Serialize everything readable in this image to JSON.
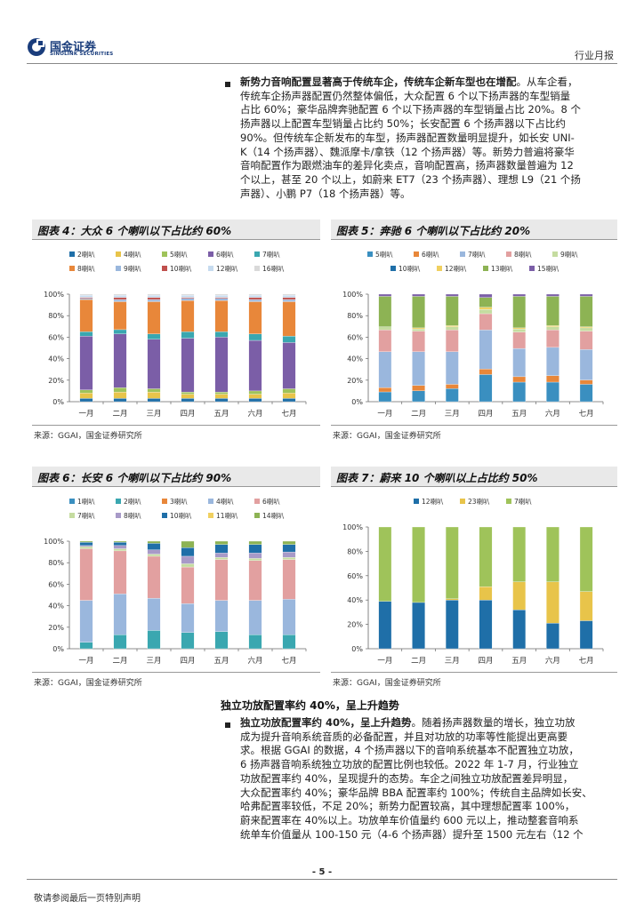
{
  "header": {
    "logo_cn": "国金证券",
    "logo_en": "SINOLINK SECURITIES",
    "section": "行业月报"
  },
  "para1": {
    "lead": "新势力音响配置显著高于传统车企，传统车企新车型也在增配",
    "lines": [
      "。从车企看，",
      "传统车企扬声器配置仍然整体偏低，大众配置 6 个以下扬声器的车型销量",
      "占比 60%；豪华品牌奔驰配置 6 个以下扬声器的车型销量占比 20%。8 个",
      "扬声器以上配置车型销量占比约 50%；长安配置 6 个扬声器以下占比约",
      "90%。但传统车企新发布的车型，扬声器配置数量明显提升，如长安 UNI-",
      "K（14 个扬声器）、魏派摩卡/拿铁（12 个扬声器）等。新势力普遍将豪华",
      "音响配置作为跟燃油车的差异化卖点，音响配置高，扬声器数量普遍为 12",
      "个以上，甚至 20 个以上，如蔚来 ET7（23 个扬声器）、理想 L9（21 个扬",
      "声器）、小鹏 P7（18 个扬声器）等。"
    ]
  },
  "months": [
    "一月",
    "二月",
    "三月",
    "四月",
    "五月",
    "六月",
    "七月"
  ],
  "source_text": "来源：GGAI，国金证券研究所",
  "charts": [
    {
      "title": "图表 4：大众 6 个喇叭以下占比约 60%",
      "legend": [
        "2喇叭",
        "4喇叭",
        "5喇叭",
        "6喇叭",
        "7喇叭",
        "8喇叭",
        "9喇叭",
        "10喇叭",
        "12喇叭",
        "16喇叭"
      ],
      "legend_rows": [
        5,
        5
      ]
    },
    {
      "title": "图表 5：奔驰 6 个喇叭以下占比约 20%",
      "legend": [
        "5喇叭",
        "6喇叭",
        "7喇叭",
        "8喇叭",
        "9喇叭",
        "10喇叭",
        "12喇叭",
        "13喇叭",
        "15喇叭"
      ],
      "legend_rows": [
        5,
        4
      ]
    },
    {
      "title": "图表 6：长安 6 个喇叭以下占比约 90%",
      "legend": [
        "1喇叭",
        "2喇叭",
        "3喇叭",
        "4喇叭",
        "6喇叭",
        "7喇叭",
        "8喇叭",
        "10喇叭",
        "11喇叭",
        "14喇叭"
      ],
      "legend_rows": [
        5,
        5
      ]
    },
    {
      "title": "图表 7：蔚来 10 个喇叭以上占比约 50%",
      "legend": [
        "12喇叭",
        "23喇叭",
        "7喇叭"
      ],
      "legend_rows": [
        3
      ]
    }
  ],
  "chart_data": [
    {
      "type": "bar",
      "stacked": true,
      "title": "图表 4：大众 6 个喇叭以下占比约 60%",
      "categories": [
        "一月",
        "二月",
        "三月",
        "四月",
        "五月",
        "六月",
        "七月"
      ],
      "ylim": [
        0,
        100
      ],
      "yticks": [
        "0%",
        "20%",
        "40%",
        "60%",
        "80%",
        "100%"
      ],
      "series": [
        {
          "name": "2喇叭",
          "color": "#1f6fa8",
          "values": [
            3,
            3,
            3,
            3,
            3,
            3,
            3
          ]
        },
        {
          "name": "4喇叭",
          "color": "#e8c44a",
          "values": [
            5,
            6,
            6,
            4,
            4,
            4,
            5
          ]
        },
        {
          "name": "5喇叭",
          "color": "#9fc35a",
          "values": [
            3,
            4,
            3,
            2,
            2,
            3,
            4
          ]
        },
        {
          "name": "6喇叭",
          "color": "#7b5ea7",
          "values": [
            50,
            50,
            46,
            50,
            51,
            47,
            43
          ]
        },
        {
          "name": "7喇叭",
          "color": "#3aa7b0",
          "values": [
            4,
            4,
            5,
            6,
            5,
            6,
            6
          ]
        },
        {
          "name": "8喇叭",
          "color": "#e8873a",
          "values": [
            30,
            26,
            30,
            29,
            29,
            30,
            32
          ]
        },
        {
          "name": "9喇叭",
          "color": "#9ab7dd",
          "values": [
            1,
            2,
            2,
            2,
            2,
            2,
            2
          ]
        },
        {
          "name": "10喇叭",
          "color": "#c0504d",
          "values": [
            1,
            2,
            2,
            1,
            1,
            2,
            2
          ]
        },
        {
          "name": "12喇叭",
          "color": "#c6dbef",
          "values": [
            2,
            2,
            2,
            2,
            2,
            2,
            2
          ]
        },
        {
          "name": "16喇叭",
          "color": "#d9d9d9",
          "values": [
            1,
            1,
            1,
            1,
            1,
            1,
            1
          ]
        }
      ]
    },
    {
      "type": "bar",
      "stacked": true,
      "title": "图表 5：奔驰 6 个喇叭以下占比约 20%",
      "categories": [
        "一月",
        "二月",
        "三月",
        "四月",
        "五月",
        "六月",
        "七月"
      ],
      "ylim": [
        0,
        100
      ],
      "yticks": [
        "0%",
        "20%",
        "40%",
        "60%",
        "80%",
        "100%"
      ],
      "series": [
        {
          "name": "5喇叭",
          "color": "#3a8fc0",
          "values": [
            9,
            10,
            12,
            25,
            18,
            18,
            16
          ]
        },
        {
          "name": "6喇叭",
          "color": "#e8873a",
          "values": [
            4,
            5,
            4,
            5,
            5,
            6,
            4
          ]
        },
        {
          "name": "7喇叭",
          "color": "#9ab7dd",
          "values": [
            33,
            31,
            30,
            36,
            26,
            26,
            28
          ]
        },
        {
          "name": "8喇叭",
          "color": "#e2a0a0",
          "values": [
            20,
            19,
            20,
            15,
            15,
            16,
            17
          ]
        },
        {
          "name": "9喇叭",
          "color": "#c5dca0",
          "values": [
            3,
            2,
            3,
            4,
            3,
            3,
            3
          ]
        },
        {
          "name": "10喇叭",
          "color": "#1f6fa8",
          "values": [
            0,
            0,
            0,
            0,
            0,
            0,
            0
          ]
        },
        {
          "name": "12喇叭",
          "color": "#f0d060",
          "values": [
            0,
            1,
            1,
            2,
            1,
            1,
            1
          ]
        },
        {
          "name": "13喇叭",
          "color": "#8db354",
          "values": [
            28,
            29,
            27,
            9,
            29,
            27,
            28
          ]
        },
        {
          "name": "15喇叭",
          "color": "#7b5ea7",
          "values": [
            2,
            2,
            2,
            3,
            2,
            2,
            2
          ]
        }
      ]
    },
    {
      "type": "bar",
      "stacked": true,
      "title": "图表 6：长安 6 个喇叭以下占比约 90%",
      "categories": [
        "一月",
        "二月",
        "三月",
        "四月",
        "五月",
        "六月",
        "七月"
      ],
      "ylim": [
        0,
        100
      ],
      "yticks": [
        "0%",
        "20%",
        "40%",
        "60%",
        "80%",
        "100%"
      ],
      "series": [
        {
          "name": "1喇叭",
          "color": "#3a8fc0",
          "values": [
            0,
            0,
            0,
            0,
            0,
            0,
            0
          ]
        },
        {
          "name": "2喇叭",
          "color": "#3aa7b0",
          "values": [
            6,
            13,
            17,
            15,
            16,
            13,
            13
          ]
        },
        {
          "name": "3喇叭",
          "color": "#e8873a",
          "values": [
            0,
            0,
            0,
            0,
            0,
            0,
            0
          ]
        },
        {
          "name": "4喇叭",
          "color": "#9ab7dd",
          "values": [
            39,
            38,
            30,
            27,
            29,
            32,
            33
          ]
        },
        {
          "name": "6喇叭",
          "color": "#e2a0a0",
          "values": [
            48,
            40,
            39,
            34,
            38,
            37,
            37
          ]
        },
        {
          "name": "7喇叭",
          "color": "#c5dca0",
          "values": [
            2,
            2,
            2,
            3,
            2,
            2,
            2
          ]
        },
        {
          "name": "8喇叭",
          "color": "#a89ac8",
          "values": [
            1,
            3,
            4,
            7,
            4,
            5,
            5
          ]
        },
        {
          "name": "10喇叭",
          "color": "#1f6fa8",
          "values": [
            3,
            3,
            6,
            8,
            8,
            8,
            7
          ]
        },
        {
          "name": "11喇叭",
          "color": "#f0d060",
          "values": [
            0,
            0,
            0,
            0,
            0,
            0,
            0
          ]
        },
        {
          "name": "14喇叭",
          "color": "#8db354",
          "values": [
            1,
            1,
            2,
            6,
            3,
            3,
            3
          ]
        }
      ]
    },
    {
      "type": "bar",
      "stacked": true,
      "title": "图表 7：蔚来 10 个喇叭以上占比约 50%",
      "categories": [
        "一月",
        "二月",
        "三月",
        "四月",
        "五月",
        "六月",
        "七月"
      ],
      "ylim": [
        0,
        100
      ],
      "yticks": [
        "0%",
        "20%",
        "40%",
        "60%",
        "80%",
        "100%"
      ],
      "series": [
        {
          "name": "12喇叭",
          "color": "#1f6fa8",
          "values": [
            39,
            38,
            40,
            40,
            32,
            21,
            23
          ]
        },
        {
          "name": "23喇叭",
          "color": "#e8c44a",
          "values": [
            0,
            0,
            1,
            11,
            23,
            34,
            24
          ]
        },
        {
          "name": "7喇叭",
          "color": "#9fc35a",
          "values": [
            61,
            62,
            59,
            49,
            45,
            45,
            53
          ]
        }
      ]
    }
  ],
  "subheading": "独立功放配置率约 40%，呈上升趋势",
  "para2": {
    "lead": "独立功放配置率约 40%，呈上升趋势",
    "lines": [
      "。随着扬声器数量的增长，独立功放",
      "成为提升音响系统音质的必备配置，并且对功放的功率等性能提出更高要",
      "求。根据 GGAI 的数据，4 个扬声器以下的音响系统基本不配置独立功放，",
      "6 扬声器音响系统独立功放的配置比例也较低。2022 年 1-7 月，行业独立",
      "功放配置率约 40%，呈现提升的态势。车企之间独立功放配置差异明显，",
      "大众配置率约 40%；豪华品牌 BBA 配置率约 100%；传统自主品牌如长安、",
      "哈弗配置率较低，不足 20%；新势力配置较高，其中理想配置率 100%，",
      "蔚来配置率在 40%以上。功放单车价值量约 600 元以上，推动整套音响系",
      "统单车价值量从 100-150 元（4-6 个扬声器）提升至 1500 元左右（12 个"
    ]
  },
  "footer": {
    "page": "- 5 -",
    "note": "敬请参阅最后一页特别声明"
  }
}
